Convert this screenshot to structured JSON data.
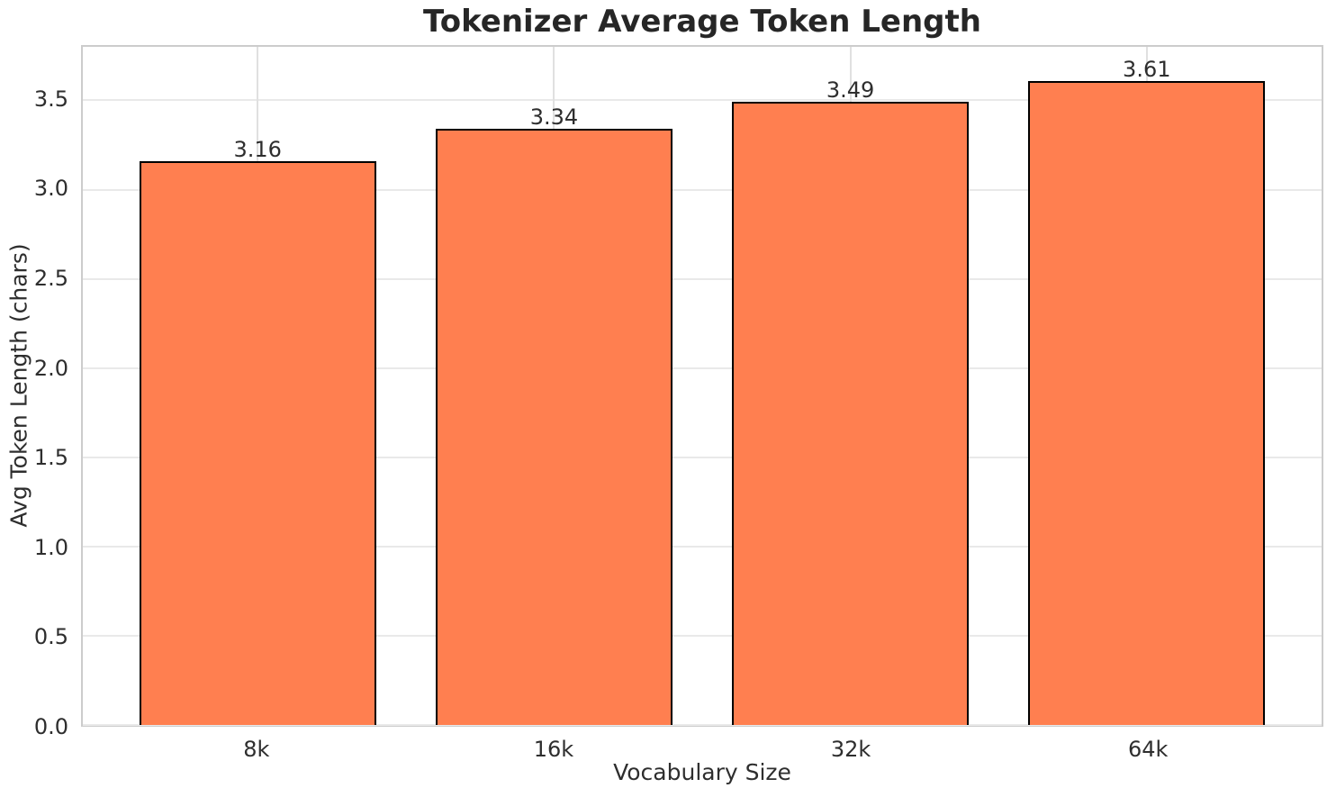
{
  "chart_data": {
    "type": "bar",
    "title": "Tokenizer Average Token Length",
    "xlabel": "Vocabulary Size",
    "ylabel": "Avg Token Length (chars)",
    "categories": [
      "8k",
      "16k",
      "32k",
      "64k"
    ],
    "values": [
      3.16,
      3.34,
      3.49,
      3.61
    ],
    "value_labels": [
      "3.16",
      "3.34",
      "3.49",
      "3.61"
    ],
    "yticks": [
      0.0,
      0.5,
      1.0,
      1.5,
      2.0,
      2.5,
      3.0,
      3.5
    ],
    "ytick_labels": [
      "0.0",
      "0.5",
      "1.0",
      "1.5",
      "2.0",
      "2.5",
      "3.0",
      "3.5"
    ],
    "ylim": [
      0,
      3.8
    ],
    "grid": true,
    "legend": "none",
    "colors": {
      "bar_fill": "#FF7F50",
      "bar_edge": "#000000",
      "grid": "#e9e9e9",
      "grid_vertical": "#e0e0e0",
      "spine": "#cccccc",
      "title_text": "#262626",
      "tick_text": "#2e2e2e",
      "background": "#ffffff"
    }
  }
}
